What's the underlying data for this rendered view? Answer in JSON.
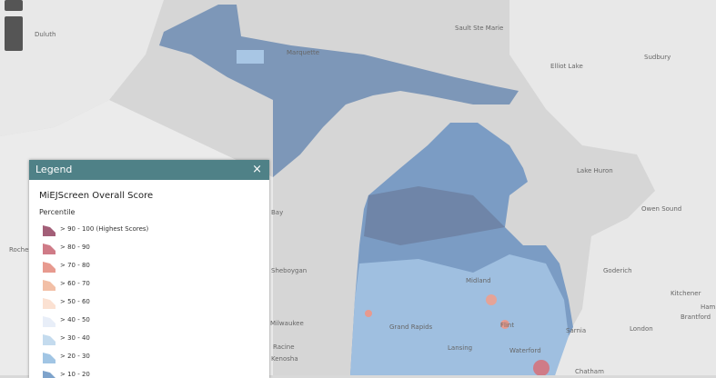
{
  "legend": {
    "header": "Legend",
    "close": "×",
    "layer_title": "MiEJScreen Overall Score",
    "subtitle": "Percentile",
    "items": [
      {
        "label": "> 90 - 100 (Highest Scores)",
        "color": "#a35f78"
      },
      {
        "label": "> 80 - 90",
        "color": "#cf7b87"
      },
      {
        "label": "> 70 - 80",
        "color": "#e79a8f"
      },
      {
        "label": "> 60 - 70",
        "color": "#f2bfa6"
      },
      {
        "label": "> 50 - 60",
        "color": "#fbe1d2"
      },
      {
        "label": "> 40 - 50",
        "color": "#e8eef8"
      },
      {
        "label": "> 30 - 40",
        "color": "#c4dbee"
      },
      {
        "label": "> 20 - 30",
        "color": "#a1c5e4"
      },
      {
        "label": "> 10 - 20",
        "color": "#7ea3cb"
      }
    ]
  },
  "map": {
    "labels": [
      "Duluth",
      "Marquette",
      "Sault Ste Marie",
      "Elliot Lake",
      "Sudbury",
      "Lake Huron",
      "Owen Sound",
      "Goderich",
      "Kitchener",
      "Brantford",
      "London",
      "Chatham",
      "Sheboygan",
      "Milwaukee",
      "Racine",
      "Kenosha",
      "Bay",
      "Rochester",
      "Midland",
      "Flint",
      "Lansing",
      "Grand Rapids",
      "Waterford",
      "Sarnia",
      "Ham"
    ]
  }
}
